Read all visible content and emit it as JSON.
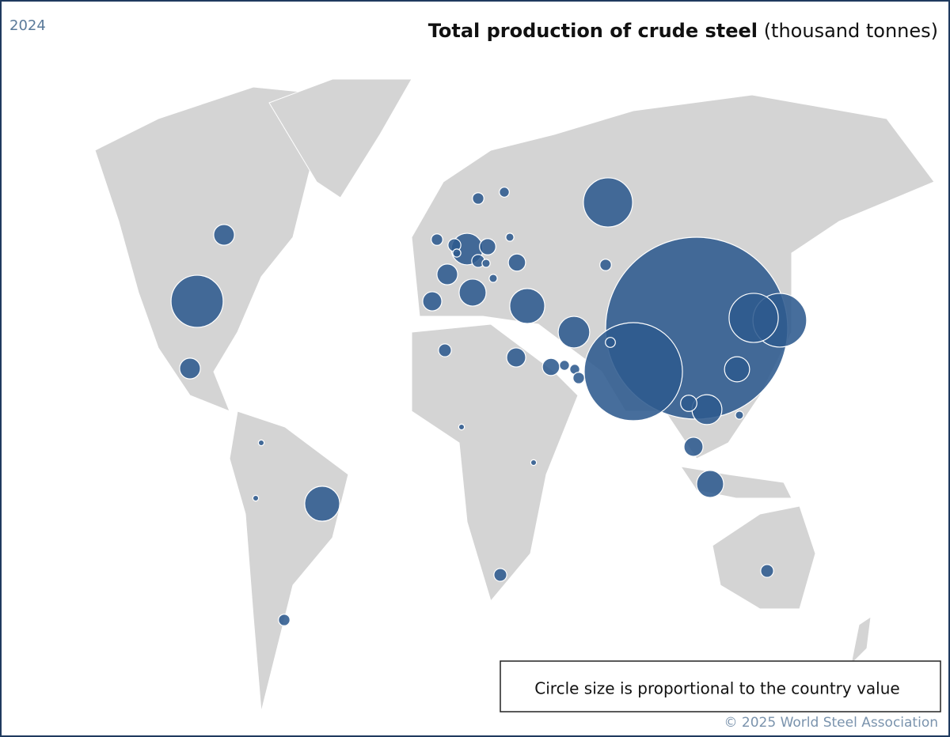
{
  "year": "2024",
  "title": "Total production of crude steel",
  "title_unit": "(thousand tonnes)",
  "note": "Circle size is proportional to the country value",
  "credit": "© 2025 World Steel Association",
  "bubbles": {
    "color": "#2d5a8e",
    "values": [
      1000000,
      291000,
      87000,
      73000,
      82000,
      73000,
      37000,
      30000,
      37000,
      30000,
      27000,
      19000,
      22000,
      22000,
      13000,
      11000,
      13000,
      13000,
      9000,
      9000,
      11000,
      8000,
      11000,
      8000,
      5000,
      5000,
      5000,
      5000,
      4000,
      3000,
      4000,
      4000,
      5000,
      4000,
      2000,
      2000,
      2000,
      2000,
      3000,
      3000,
      4000,
      3000,
      2000,
      1000,
      1000,
      1000,
      1000
    ]
  }
}
